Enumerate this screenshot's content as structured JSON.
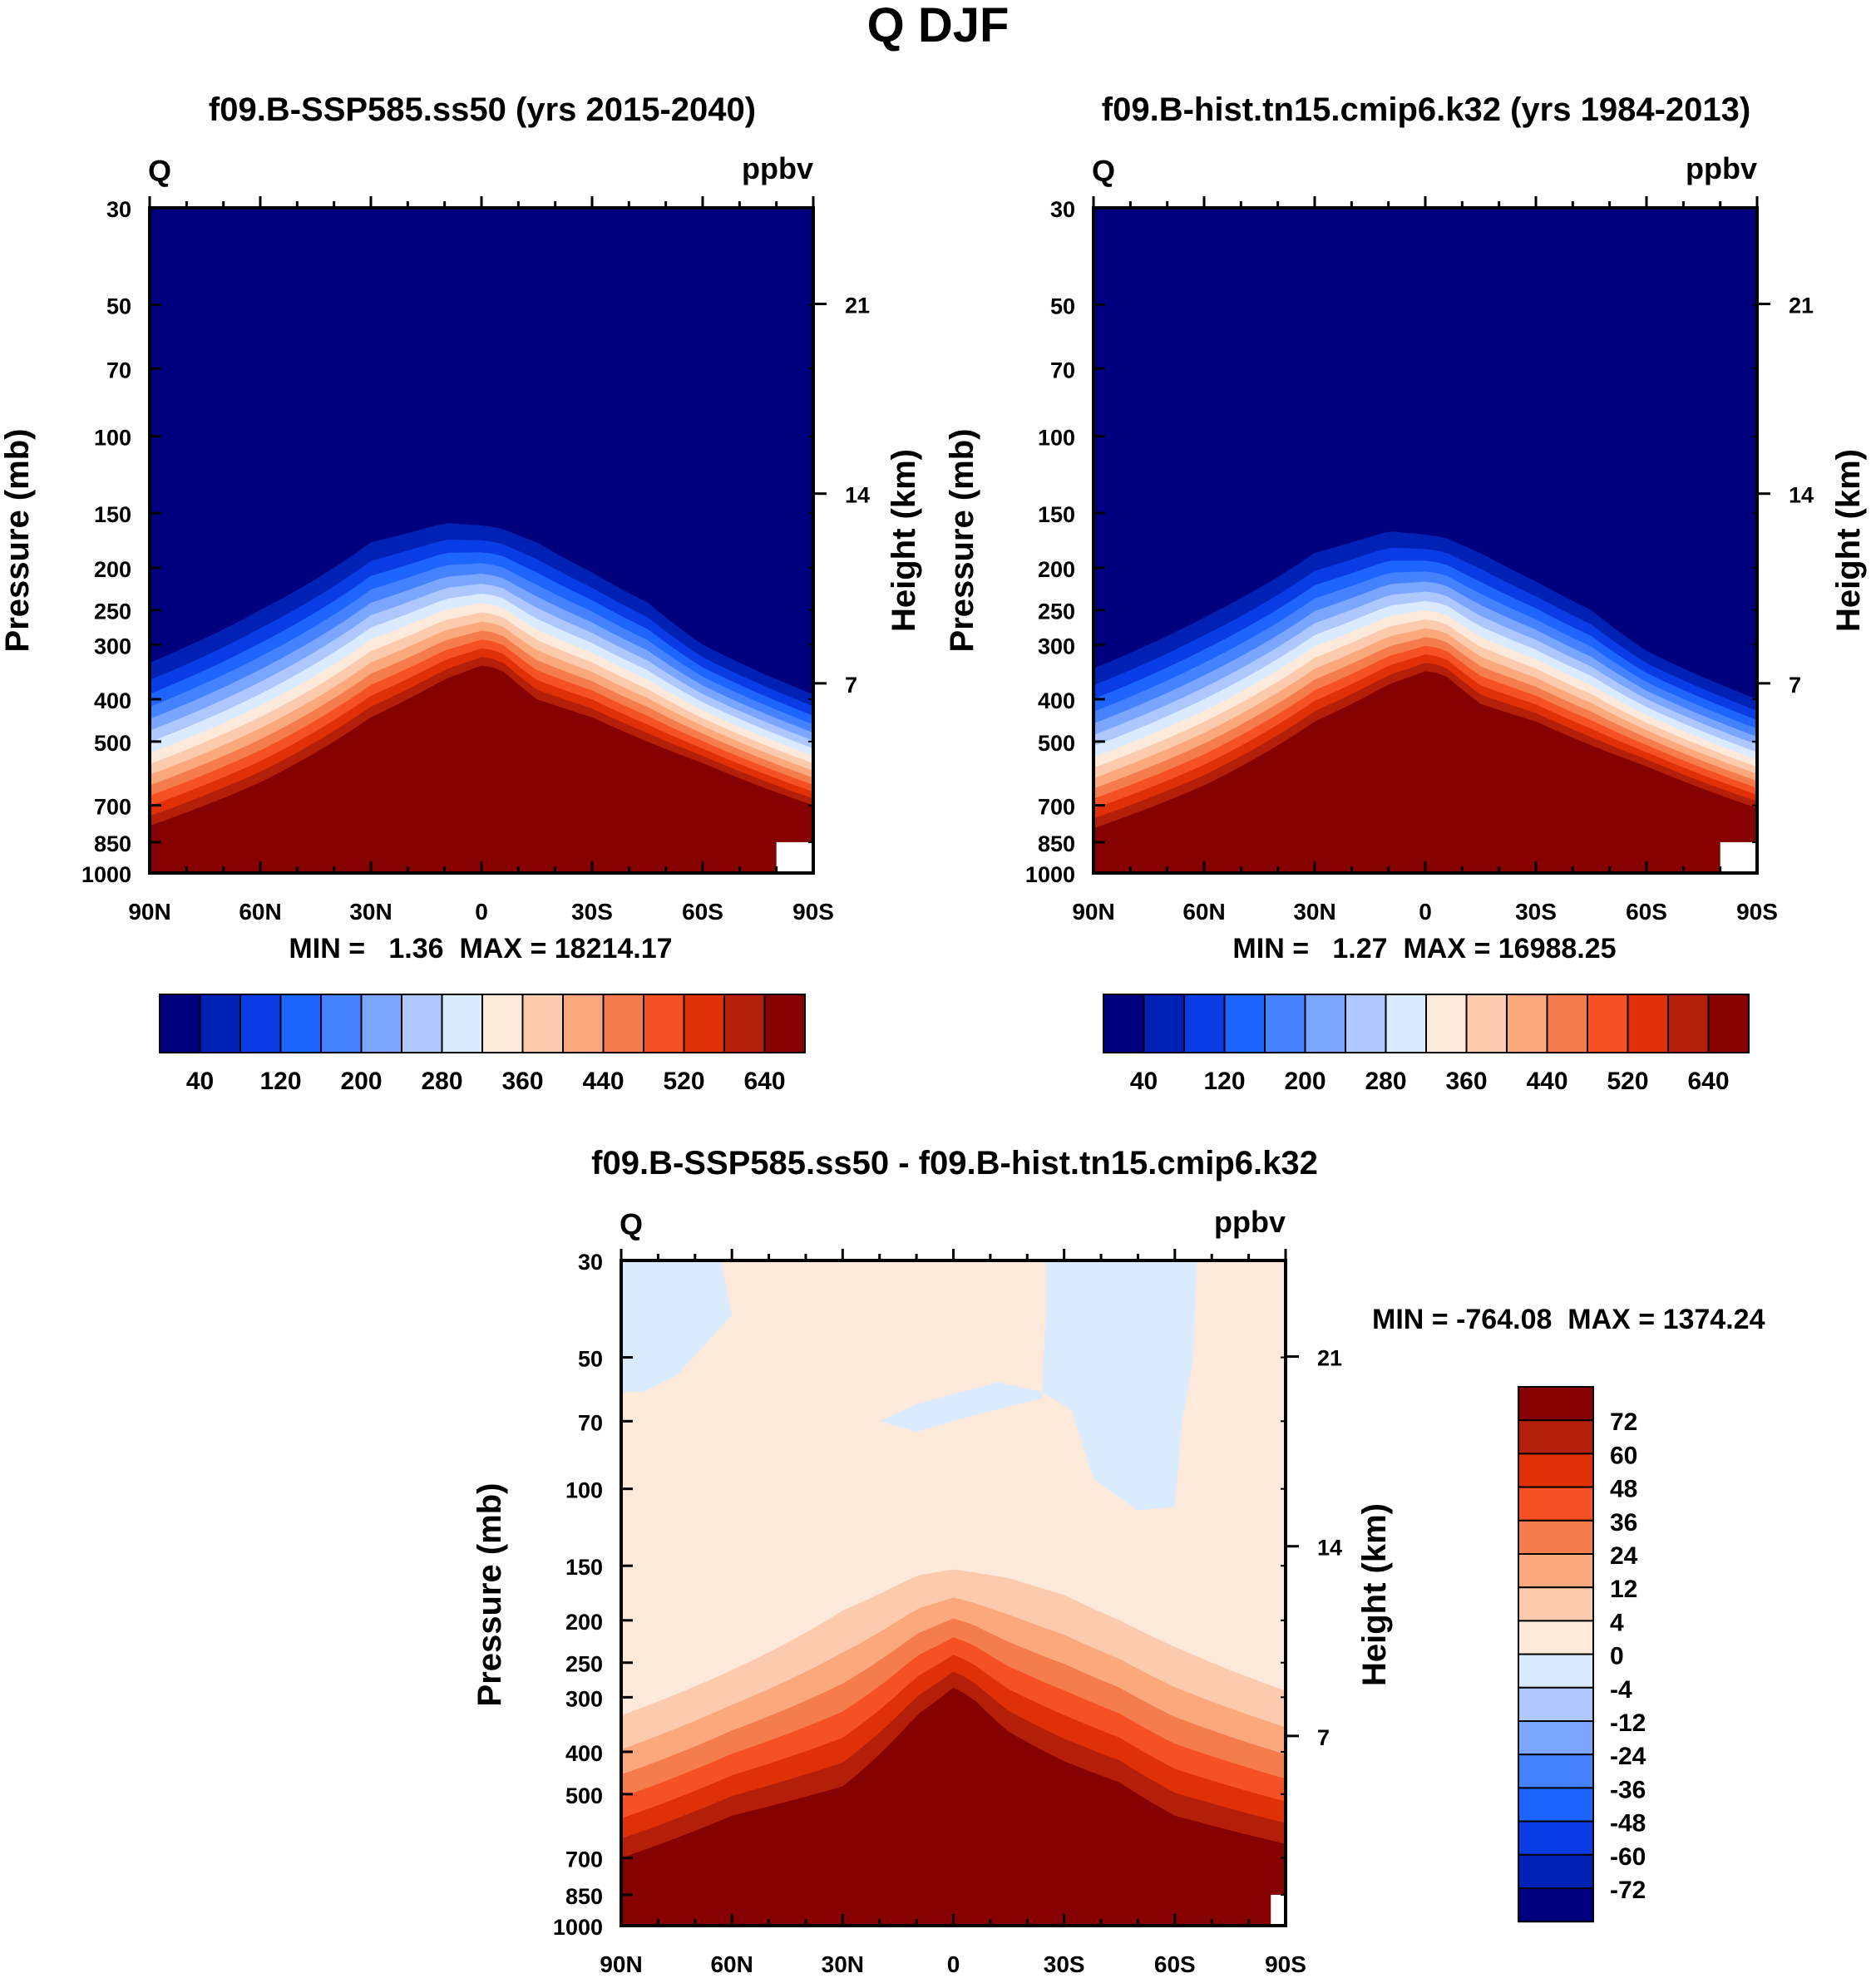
{
  "figure_title": "Q DJF",
  "colors": {
    "abs_scale": [
      "#00007f",
      "#0022b4",
      "#0a3ce6",
      "#1e64ff",
      "#4482ff",
      "#7aa6ff",
      "#aec8ff",
      "#daeaff",
      "#fde9d9",
      "#fccaad",
      "#fba87d",
      "#f57c4c",
      "#f65125",
      "#e03006",
      "#b41f0a",
      "#860101"
    ],
    "diff_scale_top_to_bottom": [
      "#860101",
      "#b41f0a",
      "#e03006",
      "#f65125",
      "#f57c4c",
      "#fba87d",
      "#fccaad",
      "#fde9d9",
      "#daeaff",
      "#aec8ff",
      "#7aa6ff",
      "#4482ff",
      "#1e64ff",
      "#0a3ce6",
      "#0022b4",
      "#00007f"
    ]
  },
  "panels": {
    "left": {
      "title": "f09.B-SSP585.ss50 (yrs 2015-2040)",
      "var_label": "Q",
      "units_label": "ppbv",
      "y_label": "Pressure (mb)",
      "y2_label": "Height (km)",
      "minmax": "MIN =   1.36  MAX = 18214.17"
    },
    "right": {
      "title": "f09.B-hist.tn15.cmip6.k32 (yrs 1984-2013)",
      "var_label": "Q",
      "units_label": "ppbv",
      "y_label": "Pressure (mb)",
      "y2_label": "Height (km)",
      "minmax": "MIN =   1.27  MAX = 16988.25"
    },
    "diff": {
      "title": "f09.B-SSP585.ss50 - f09.B-hist.tn15.cmip6.k32",
      "var_label": "Q",
      "units_label": "ppbv",
      "y_label": "Pressure (mb)",
      "y2_label": "Height (km)",
      "minmax": "MIN = -764.08  MAX = 1374.24"
    }
  },
  "chart_data": [
    {
      "type": "heatmap",
      "panel": "left",
      "title": "f09.B-SSP585.ss50 (yrs 2015-2040)",
      "xlabel": "",
      "ylabel": "Pressure (mb)",
      "y2label": "Height (km)",
      "x_ticks": [
        "90N",
        "60N",
        "30N",
        "0",
        "30S",
        "60S",
        "90S"
      ],
      "y_ticks": [
        30,
        50,
        70,
        100,
        150,
        200,
        250,
        300,
        400,
        500,
        700,
        850,
        1000
      ],
      "y2_ticks": [
        21,
        14,
        7
      ],
      "ylim": [
        1000,
        30
      ],
      "levels": [
        40,
        80,
        120,
        160,
        200,
        240,
        280,
        320,
        360,
        400,
        440,
        480,
        520,
        560,
        600,
        640
      ],
      "colorbar_labels": [
        "40",
        "120",
        "200",
        "280",
        "360",
        "440",
        "520",
        "640"
      ],
      "contour_top_lat": [
        -90,
        -60,
        -45,
        -30,
        -15,
        -5,
        0,
        10,
        30,
        60,
        90
      ],
      "contour_top_p": [
        390,
        300,
        240,
        205,
        175,
        162,
        160,
        158,
        175,
        250,
        330
      ],
      "contour_base_lat": [
        -90,
        -60,
        -45,
        -30,
        -15,
        -5,
        0,
        10,
        30,
        60,
        90
      ],
      "contour_base_p": [
        700,
        560,
        500,
        440,
        400,
        340,
        335,
        360,
        440,
        620,
        780
      ],
      "min": 1.36,
      "max": 18214.17
    },
    {
      "type": "heatmap",
      "panel": "right",
      "title": "f09.B-hist.tn15.cmip6.k32 (yrs 1984-2013)",
      "xlabel": "",
      "ylabel": "Pressure (mb)",
      "y2label": "Height (km)",
      "x_ticks": [
        "90N",
        "60N",
        "30N",
        "0",
        "30S",
        "60S",
        "90S"
      ],
      "y_ticks": [
        30,
        50,
        70,
        100,
        150,
        200,
        250,
        300,
        400,
        500,
        700,
        850,
        1000
      ],
      "y2_ticks": [
        21,
        14,
        7
      ],
      "ylim": [
        1000,
        30
      ],
      "levels": [
        40,
        80,
        120,
        160,
        200,
        240,
        280,
        320,
        360,
        400,
        440,
        480,
        520,
        560,
        600,
        640
      ],
      "colorbar_labels": [
        "40",
        "120",
        "200",
        "280",
        "360",
        "440",
        "520",
        "640"
      ],
      "contour_top_lat": [
        -90,
        -60,
        -45,
        -30,
        -15,
        -5,
        0,
        10,
        30,
        60,
        90
      ],
      "contour_top_p": [
        400,
        310,
        250,
        215,
        185,
        170,
        168,
        165,
        185,
        260,
        340
      ],
      "contour_base_lat": [
        -90,
        -60,
        -45,
        -30,
        -15,
        -5,
        0,
        10,
        30,
        60,
        90
      ],
      "contour_base_p": [
        710,
        570,
        510,
        450,
        410,
        350,
        345,
        370,
        450,
        630,
        790
      ],
      "min": 1.27,
      "max": 16988.25
    },
    {
      "type": "heatmap",
      "panel": "diff",
      "title": "f09.B-SSP585.ss50 - f09.B-hist.tn15.cmip6.k32",
      "xlabel": "",
      "ylabel": "Pressure (mb)",
      "y2label": "Height (km)",
      "x_ticks": [
        "90N",
        "60N",
        "30N",
        "0",
        "30S",
        "60S",
        "90S"
      ],
      "y_ticks": [
        30,
        50,
        70,
        100,
        150,
        200,
        250,
        300,
        400,
        500,
        700,
        850,
        1000
      ],
      "y2_ticks": [
        21,
        14,
        7
      ],
      "ylim": [
        1000,
        30
      ],
      "levels": [
        -72,
        -60,
        -48,
        -36,
        -24,
        -12,
        -4,
        0,
        4,
        12,
        24,
        36,
        48,
        60,
        72
      ],
      "colorbar_labels": [
        "72",
        "60",
        "48",
        "36",
        "24",
        "12",
        "4",
        "0",
        "-4",
        "-12",
        "-24",
        "-36",
        "-48",
        "-60",
        "-72"
      ],
      "min": -764.08,
      "max": 1374.24
    }
  ]
}
